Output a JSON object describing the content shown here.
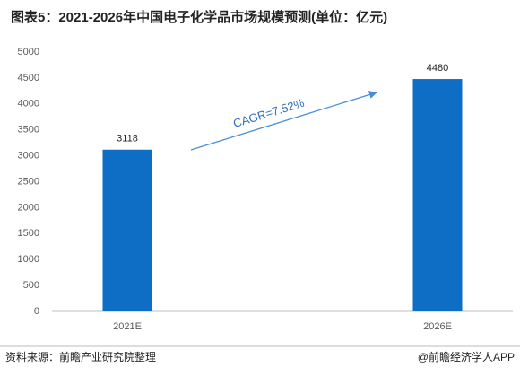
{
  "chart_data": {
    "type": "bar",
    "title": "图表5：2021-2026年中国电子化学品市场规模预测(单位：亿元)",
    "categories": [
      "2021E",
      "2026E"
    ],
    "values": [
      3118,
      4480
    ],
    "color": "#0e6ec5",
    "ylim": [
      0,
      5000
    ],
    "yticks": [
      0,
      500,
      1000,
      1500,
      2000,
      2500,
      3000,
      3500,
      4000,
      4500,
      5000
    ],
    "grid": false,
    "annotation": "CAGR=7.52%",
    "source": "资料来源：前瞻产业研究院整理",
    "credit": "@前瞻经济学人APP"
  }
}
